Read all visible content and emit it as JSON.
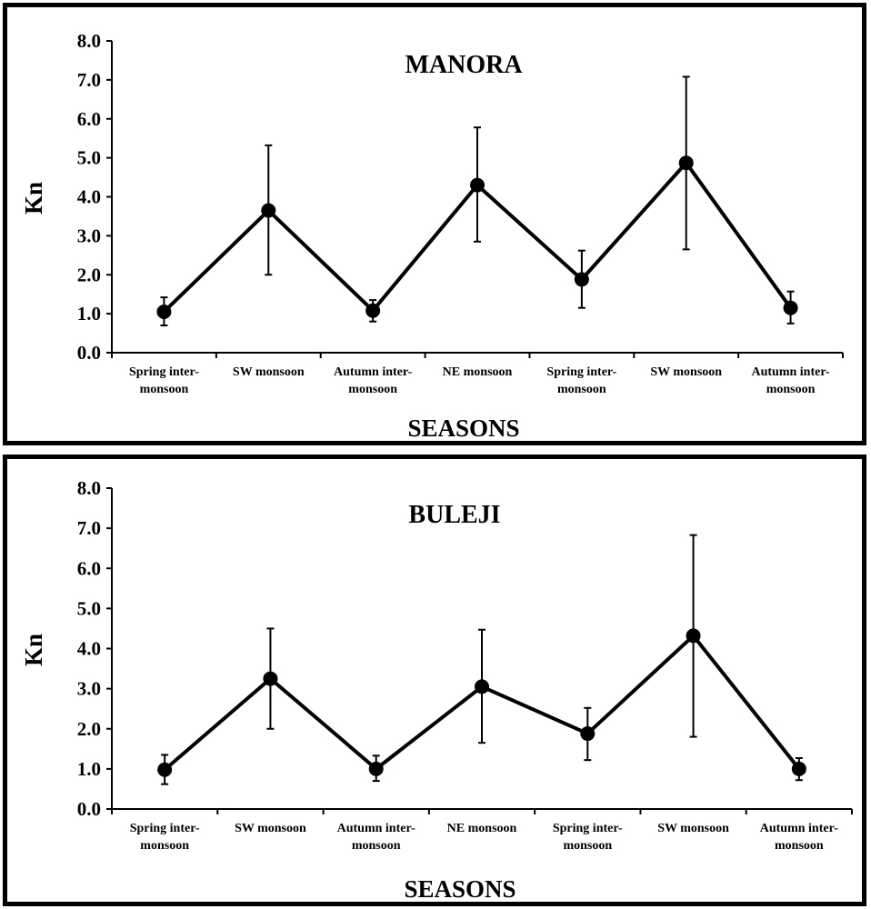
{
  "chart_data": [
    {
      "type": "line",
      "title": "MANORA",
      "xlabel": "SEASONS",
      "ylabel": "Kn",
      "ylim": [
        0,
        8
      ],
      "yticks": [
        "0.0",
        "1.0",
        "2.0",
        "3.0",
        "4.0",
        "5.0",
        "6.0",
        "7.0",
        "8.0"
      ],
      "categories": [
        [
          "Spring inter-",
          "monsoon"
        ],
        [
          "SW monsoon"
        ],
        [
          "Autumn inter-",
          "monsoon"
        ],
        [
          "NE monsoon"
        ],
        [
          "Spring inter-",
          "monsoon"
        ],
        [
          "SW monsoon"
        ],
        [
          "Autumn inter-",
          "monsoon"
        ]
      ],
      "series": [
        {
          "values": [
            1.05,
            3.65,
            1.08,
            4.3,
            1.88,
            4.87,
            1.15
          ],
          "error_low": [
            0.7,
            2.0,
            0.8,
            2.85,
            1.15,
            2.65,
            0.75
          ],
          "error_high": [
            1.42,
            5.32,
            1.35,
            5.78,
            2.62,
            7.08,
            1.57
          ]
        }
      ],
      "grid": false,
      "color": "#000000"
    },
    {
      "type": "line",
      "title": "BULEJI",
      "xlabel": "SEASONS",
      "ylabel": "Kn",
      "ylim": [
        0,
        8
      ],
      "yticks": [
        "0.0",
        "1.0",
        "2.0",
        "3.0",
        "4.0",
        "5.0",
        "6.0",
        "7.0",
        "8.0"
      ],
      "categories": [
        [
          "Spring inter-",
          "monsoon"
        ],
        [
          "SW monsoon"
        ],
        [
          "Autumn inter-",
          "monsoon"
        ],
        [
          "NE monsoon"
        ],
        [
          "Spring inter-",
          "monsoon"
        ],
        [
          "SW monsoon"
        ],
        [
          "Autumn inter-",
          "monsoon"
        ]
      ],
      "series": [
        {
          "values": [
            0.98,
            3.25,
            1.0,
            3.05,
            1.88,
            4.32,
            1.0
          ],
          "error_low": [
            0.62,
            2.0,
            0.7,
            1.65,
            1.22,
            1.8,
            0.72
          ],
          "error_high": [
            1.35,
            4.5,
            1.33,
            4.47,
            2.52,
            6.83,
            1.27
          ]
        }
      ],
      "grid": false,
      "color": "#000000"
    }
  ]
}
